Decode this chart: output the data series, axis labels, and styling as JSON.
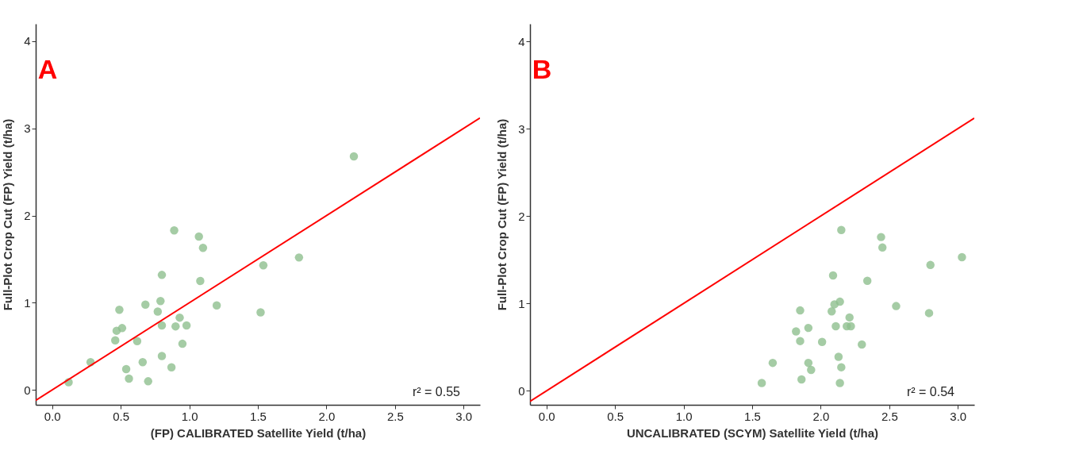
{
  "chart_data": [
    {
      "type": "scatter",
      "title": "A",
      "xlabel": "(FP) CALIBRATED Satellite Yield (t/ha)",
      "ylabel": "Full-Plot Crop Cut (FP) Yield  (t/ha)",
      "xlim": [
        -0.12,
        3.12
      ],
      "ylim": [
        -0.17,
        4.2
      ],
      "xticks": [
        {
          "value": 0,
          "label": "0.0"
        },
        0.5,
        {
          "value": 1,
          "label": "1.0"
        },
        1.5,
        {
          "value": 2,
          "label": "2.0"
        },
        2.5,
        {
          "value": 3,
          "label": "3.0"
        }
      ],
      "yticks": [
        0,
        1,
        2,
        3,
        4
      ],
      "grid": false,
      "annotations": [
        "r² = 0.55"
      ],
      "series": [
        {
          "type": "scatter",
          "marker": "circle",
          "color": "#8fbf8f",
          "x": [
            0.12,
            0.28,
            0.46,
            0.47,
            0.49,
            0.51,
            0.54,
            0.56,
            0.62,
            0.66,
            0.68,
            0.7,
            0.77,
            0.79,
            0.8,
            0.8,
            0.8,
            0.87,
            0.89,
            0.9,
            0.93,
            0.95,
            0.98,
            1.07,
            1.08,
            1.1,
            1.2,
            1.52,
            1.54,
            1.8,
            2.2
          ],
          "values": [
            0.09,
            0.32,
            0.57,
            0.68,
            0.92,
            0.71,
            0.24,
            0.13,
            0.56,
            0.32,
            0.98,
            0.1,
            0.9,
            1.02,
            1.32,
            0.74,
            0.39,
            0.26,
            1.83,
            0.73,
            0.83,
            0.53,
            0.74,
            1.76,
            1.25,
            1.63,
            0.97,
            0.89,
            1.43,
            1.52,
            2.68
          ]
        },
        {
          "type": "line",
          "color": "#ff0000",
          "x": [
            -0.12,
            3.12
          ],
          "values": [
            -0.12,
            3.12
          ]
        }
      ]
    },
    {
      "type": "scatter",
      "title": "B",
      "xlabel": "UNCALIBRATED (SCYM) Satellite Yield (t/ha)",
      "ylabel": "Full-Plot Crop Cut (FP) Yield  (t/ha)",
      "xlim": [
        -0.12,
        3.12
      ],
      "ylim": [
        -0.16,
        4.2
      ],
      "xticks": [
        {
          "value": 0,
          "label": "0.0"
        },
        0.5,
        {
          "value": 1,
          "label": "1.0"
        },
        1.5,
        {
          "value": 2,
          "label": "2.0"
        },
        2.5,
        {
          "value": 3,
          "label": "3.0"
        }
      ],
      "yticks": [
        0,
        1,
        2,
        3,
        4
      ],
      "grid": false,
      "annotations": [
        "r² = 0.54"
      ],
      "series": [
        {
          "type": "scatter",
          "marker": "circle",
          "color": "#8fbf8f",
          "x": [
            1.57,
            1.65,
            1.85,
            1.82,
            1.85,
            1.91,
            1.91,
            1.93,
            1.86,
            2.01,
            2.09,
            2.08,
            2.1,
            2.14,
            2.11,
            2.13,
            2.15,
            2.14,
            2.15,
            2.21,
            2.19,
            2.22,
            2.3,
            2.34,
            2.44,
            2.45,
            2.55,
            2.8,
            2.79,
            3.03
          ],
          "values": [
            0.09,
            0.32,
            0.92,
            0.68,
            0.57,
            0.72,
            0.32,
            0.24,
            0.13,
            0.56,
            1.32,
            0.91,
            0.99,
            1.02,
            0.74,
            0.39,
            0.27,
            0.09,
            1.84,
            0.84,
            0.74,
            0.74,
            0.53,
            1.26,
            1.76,
            1.64,
            0.97,
            1.44,
            0.89,
            1.53
          ]
        },
        {
          "type": "line",
          "color": "#ff0000",
          "x": [
            -0.12,
            3.12
          ],
          "values": [
            -0.12,
            3.12
          ]
        }
      ]
    }
  ]
}
